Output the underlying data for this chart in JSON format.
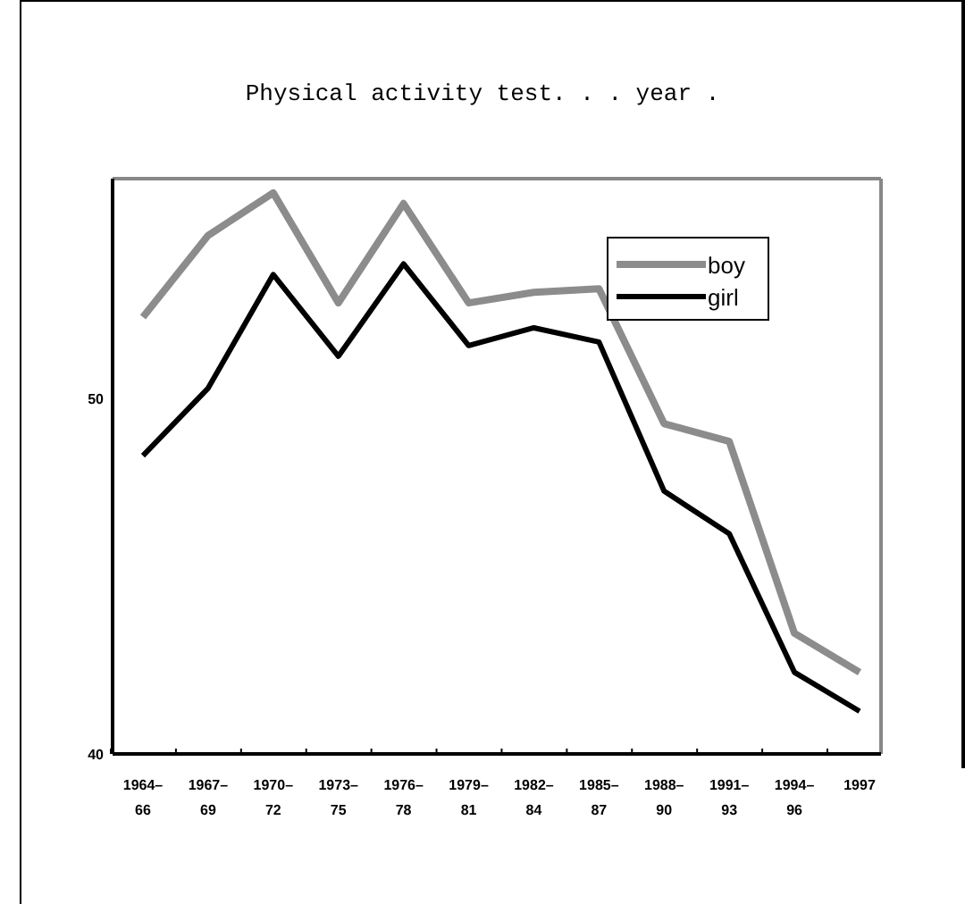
{
  "chart_data": {
    "type": "line",
    "title": "Physical activity test. . . year .",
    "categories": [
      "1964–66",
      "1967–69",
      "1970–72",
      "1973–75",
      "1976–78",
      "1979–81",
      "1982–84",
      "1985–87",
      "1988–90",
      "1991–93",
      "1994–96",
      "1997"
    ],
    "series": [
      {
        "name": "boy",
        "color": "#8c8c8c",
        "values": [
          52.3,
          54.6,
          55.8,
          52.7,
          55.5,
          52.7,
          53.0,
          53.1,
          49.3,
          48.8,
          43.4,
          42.3
        ]
      },
      {
        "name": "girl",
        "color": "#000000",
        "values": [
          48.4,
          50.3,
          53.5,
          51.2,
          53.8,
          51.5,
          52.0,
          51.6,
          47.4,
          46.2,
          42.3,
          41.2
        ]
      }
    ],
    "ylim": [
      40,
      56.2
    ],
    "yticks": [
      40,
      50
    ],
    "grid": false,
    "legend": "top right",
    "marker": "none",
    "line_style": "solid"
  }
}
